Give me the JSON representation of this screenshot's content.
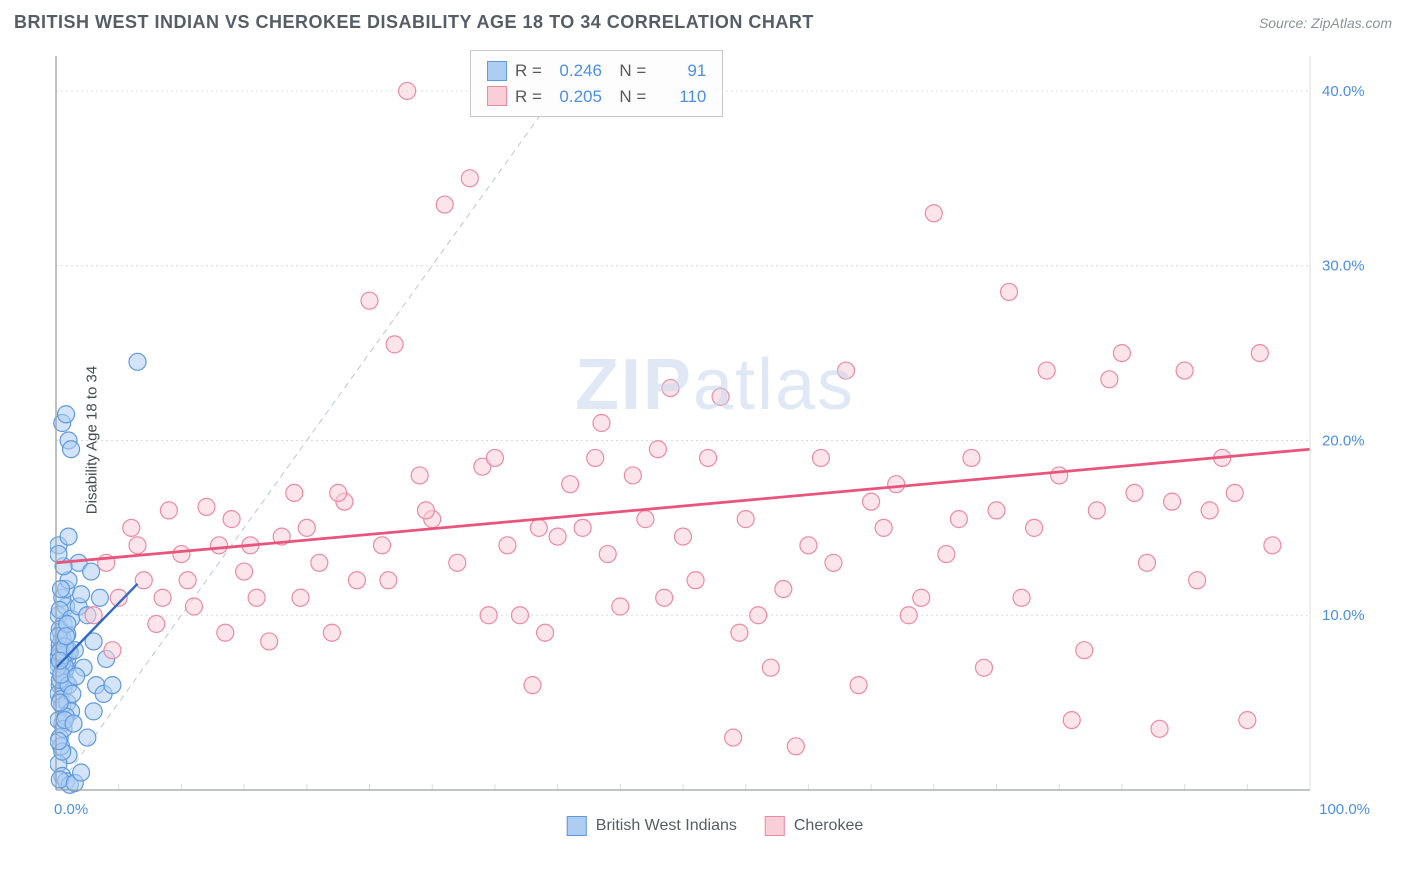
{
  "header": {
    "title": "BRITISH WEST INDIAN VS CHEROKEE DISABILITY AGE 18 TO 34 CORRELATION CHART",
    "source": "Source: ZipAtlas.com"
  },
  "watermark": {
    "zip": "ZIP",
    "atlas": "atlas"
  },
  "chart": {
    "type": "scatter",
    "ylabel": "Disability Age 18 to 34",
    "xlim": [
      0,
      100
    ],
    "ylim": [
      0,
      42
    ],
    "x_ticks": [
      {
        "v": 0,
        "label": "0.0%"
      },
      {
        "v": 100,
        "label": "100.0%"
      }
    ],
    "y_ticks": [
      {
        "v": 10,
        "label": "10.0%"
      },
      {
        "v": 20,
        "label": "20.0%"
      },
      {
        "v": 30,
        "label": "30.0%"
      },
      {
        "v": 40,
        "label": "40.0%"
      }
    ],
    "grid_color": "#dcdcdc",
    "axis_color": "#9aa0a6",
    "tick_label_color": "#4a8fe8",
    "background_color": "#ffffff",
    "marker_radius": 8.5,
    "marker_stroke_width": 1.2,
    "diag_line": {
      "x1": 0,
      "y1": 0,
      "x2": 42,
      "y2": 42,
      "color": "#b9c6d3",
      "dash": "6,5",
      "width": 1
    },
    "series": [
      {
        "name": "British West Indians",
        "fill": "#aecdf2",
        "stroke": "#5f9ae0",
        "fill_opacity": 0.55,
        "trend": {
          "x1": 0,
          "y1": 7.0,
          "x2": 6.5,
          "y2": 11.8,
          "color": "#2f68c9",
          "width": 2.4
        },
        "stats": {
          "R": "0.246",
          "N": "91"
        },
        "points": [
          [
            0.2,
            7.2
          ],
          [
            0.3,
            8.0
          ],
          [
            0.5,
            6.5
          ],
          [
            0.4,
            7.8
          ],
          [
            0.8,
            7.0
          ],
          [
            0.6,
            8.5
          ],
          [
            0.3,
            6.0
          ],
          [
            0.9,
            7.5
          ],
          [
            1.0,
            8.0
          ],
          [
            0.2,
            5.5
          ],
          [
            0.4,
            9.0
          ],
          [
            0.7,
            6.8
          ],
          [
            0.5,
            7.3
          ],
          [
            0.3,
            8.3
          ],
          [
            0.6,
            5.8
          ],
          [
            0.8,
            6.2
          ],
          [
            1.1,
            7.9
          ],
          [
            0.2,
            7.6
          ],
          [
            0.5,
            8.7
          ],
          [
            0.3,
            6.3
          ],
          [
            0.9,
            8.9
          ],
          [
            0.4,
            5.2
          ],
          [
            0.7,
            7.1
          ],
          [
            0.6,
            9.5
          ],
          [
            0.2,
            10.0
          ],
          [
            0.8,
            10.5
          ],
          [
            0.3,
            9.2
          ],
          [
            1.0,
            6.0
          ],
          [
            0.5,
            4.8
          ],
          [
            0.1,
            7.0
          ],
          [
            0.2,
            8.8
          ],
          [
            0.6,
            7.7
          ],
          [
            0.4,
            6.6
          ],
          [
            0.3,
            7.9
          ],
          [
            0.7,
            8.2
          ],
          [
            0.9,
            5.0
          ],
          [
            1.2,
            4.5
          ],
          [
            0.5,
            3.8
          ],
          [
            0.2,
            4.0
          ],
          [
            0.8,
            4.2
          ],
          [
            0.3,
            3.0
          ],
          [
            1.0,
            2.0
          ],
          [
            0.4,
            2.5
          ],
          [
            0.6,
            3.5
          ],
          [
            0.2,
            1.5
          ],
          [
            0.5,
            0.8
          ],
          [
            0.8,
            0.5
          ],
          [
            1.1,
            0.3
          ],
          [
            0.3,
            0.6
          ],
          [
            1.5,
            0.4
          ],
          [
            0.2,
            14.0
          ],
          [
            0.5,
            11.0
          ],
          [
            0.8,
            11.5
          ],
          [
            0.3,
            10.3
          ],
          [
            1.2,
            9.8
          ],
          [
            1.8,
            10.5
          ],
          [
            2.0,
            11.2
          ],
          [
            2.5,
            10.0
          ],
          [
            3.0,
            8.5
          ],
          [
            3.2,
            6.0
          ],
          [
            3.8,
            5.5
          ],
          [
            3.0,
            4.5
          ],
          [
            2.5,
            3.0
          ],
          [
            2.0,
            1.0
          ],
          [
            1.5,
            8.0
          ],
          [
            1.8,
            13.0
          ],
          [
            1.0,
            12.0
          ],
          [
            0.5,
            21.0
          ],
          [
            0.8,
            21.5
          ],
          [
            1.0,
            20.0
          ],
          [
            1.2,
            19.5
          ],
          [
            6.5,
            24.5
          ],
          [
            4.0,
            7.5
          ],
          [
            4.5,
            6.0
          ],
          [
            3.5,
            11.0
          ],
          [
            2.8,
            12.5
          ],
          [
            2.2,
            7.0
          ],
          [
            1.3,
            5.5
          ],
          [
            1.6,
            6.5
          ],
          [
            0.9,
            9.5
          ],
          [
            0.4,
            11.5
          ],
          [
            0.6,
            12.8
          ],
          [
            0.2,
            13.5
          ],
          [
            1.0,
            14.5
          ],
          [
            0.3,
            5.0
          ],
          [
            0.7,
            4.0
          ],
          [
            1.4,
            3.8
          ],
          [
            0.5,
            2.2
          ],
          [
            0.2,
            2.8
          ],
          [
            0.8,
            8.8
          ],
          [
            0.3,
            7.4
          ]
        ]
      },
      {
        "name": "Cherokee",
        "fill": "#f8cfd9",
        "stroke": "#ec8aa3",
        "fill_opacity": 0.55,
        "trend": {
          "x1": 0,
          "y1": 13.0,
          "x2": 100,
          "y2": 19.5,
          "color": "#e9547c",
          "width": 2.8
        },
        "stats": {
          "R": "0.205",
          "N": "110"
        },
        "points": [
          [
            4,
            13
          ],
          [
            5,
            11
          ],
          [
            6,
            15
          ],
          [
            7,
            12
          ],
          [
            8,
            9.5
          ],
          [
            9,
            16
          ],
          [
            10,
            13.5
          ],
          [
            11,
            10.5
          ],
          [
            12,
            16.2
          ],
          [
            13,
            14
          ],
          [
            14,
            15.5
          ],
          [
            15,
            12.5
          ],
          [
            16,
            11
          ],
          [
            17,
            8.5
          ],
          [
            18,
            14.5
          ],
          [
            19,
            17
          ],
          [
            20,
            15
          ],
          [
            21,
            13
          ],
          [
            22,
            9
          ],
          [
            23,
            16.5
          ],
          [
            24,
            12
          ],
          [
            25,
            28
          ],
          [
            26,
            14
          ],
          [
            27,
            25.5
          ],
          [
            28,
            40
          ],
          [
            29,
            18
          ],
          [
            30,
            15.5
          ],
          [
            31,
            33.5
          ],
          [
            32,
            13
          ],
          [
            33,
            35
          ],
          [
            34,
            18.5
          ],
          [
            35,
            19
          ],
          [
            36,
            14
          ],
          [
            37,
            10
          ],
          [
            38,
            6
          ],
          [
            39,
            9
          ],
          [
            40,
            14.5
          ],
          [
            41,
            17.5
          ],
          [
            42,
            15
          ],
          [
            43,
            19
          ],
          [
            44,
            13.5
          ],
          [
            45,
            10.5
          ],
          [
            46,
            18
          ],
          [
            47,
            15.5
          ],
          [
            48,
            19.5
          ],
          [
            49,
            23
          ],
          [
            50,
            14.5
          ],
          [
            51,
            12
          ],
          [
            52,
            19
          ],
          [
            53,
            22.5
          ],
          [
            54,
            3
          ],
          [
            55,
            15.5
          ],
          [
            56,
            10
          ],
          [
            57,
            7
          ],
          [
            58,
            11.5
          ],
          [
            59,
            2.5
          ],
          [
            60,
            14
          ],
          [
            61,
            19
          ],
          [
            62,
            13
          ],
          [
            63,
            24
          ],
          [
            64,
            6
          ],
          [
            65,
            16.5
          ],
          [
            66,
            15
          ],
          [
            67,
            17.5
          ],
          [
            68,
            10
          ],
          [
            69,
            11
          ],
          [
            70,
            33
          ],
          [
            71,
            13.5
          ],
          [
            72,
            15.5
          ],
          [
            73,
            19
          ],
          [
            74,
            7
          ],
          [
            75,
            16
          ],
          [
            76,
            28.5
          ],
          [
            77,
            11
          ],
          [
            78,
            15
          ],
          [
            79,
            24
          ],
          [
            80,
            18
          ],
          [
            81,
            4
          ],
          [
            82,
            8
          ],
          [
            83,
            16
          ],
          [
            84,
            23.5
          ],
          [
            85,
            25
          ],
          [
            86,
            17
          ],
          [
            87,
            13
          ],
          [
            88,
            3.5
          ],
          [
            89,
            16.5
          ],
          [
            90,
            24
          ],
          [
            91,
            12
          ],
          [
            92,
            16
          ],
          [
            93,
            19
          ],
          [
            94,
            17
          ],
          [
            95,
            4
          ],
          [
            96,
            25
          ],
          [
            97,
            14
          ],
          [
            3,
            10
          ],
          [
            4.5,
            8
          ],
          [
            6.5,
            14
          ],
          [
            8.5,
            11
          ],
          [
            10.5,
            12
          ],
          [
            13.5,
            9
          ],
          [
            15.5,
            14
          ],
          [
            19.5,
            11
          ],
          [
            22.5,
            17
          ],
          [
            26.5,
            12
          ],
          [
            29.5,
            16
          ],
          [
            34.5,
            10
          ],
          [
            38.5,
            15
          ],
          [
            43.5,
            21
          ],
          [
            48.5,
            11
          ],
          [
            54.5,
            9
          ]
        ]
      }
    ]
  },
  "legend": {
    "items": [
      {
        "label": "British West Indians",
        "fill": "#aecdf2",
        "stroke": "#5f9ae0"
      },
      {
        "label": "Cherokee",
        "fill": "#f8cfd9",
        "stroke": "#ec8aa3"
      }
    ]
  }
}
